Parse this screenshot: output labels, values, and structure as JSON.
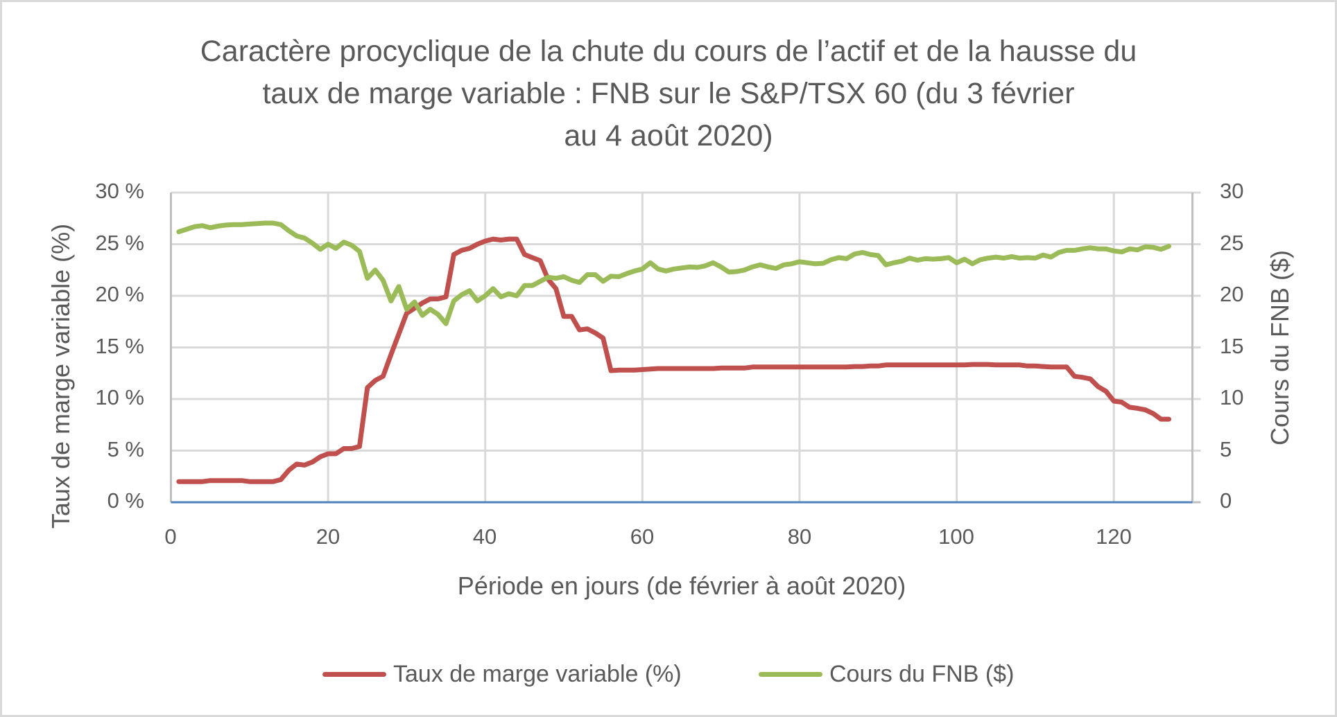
{
  "chart_data": {
    "type": "line",
    "title": "Caractère procyclique de la chute du cours de l’actif et de la hausse du taux de marge variable : FNB sur le S&P/TSX 60 (du 3 février au 4 août 2020)",
    "title_lines": [
      "Caractère procyclique de la chute du cours de l’actif et de la hausse du",
      "taux de marge variable : FNB sur le S&P/TSX 60 (du 3 février",
      "au 4 août 2020)"
    ],
    "xlabel": "Période en jours (de février à août 2020)",
    "ylabel": "Taux de marge variable (%)",
    "y2label": "Cours du FNB ($)",
    "xlim": [
      0,
      130
    ],
    "ylim": [
      0,
      30
    ],
    "y2lim": [
      0,
      30
    ],
    "x_ticks": [
      "0",
      "20",
      "40",
      "60",
      "80",
      "100",
      "120"
    ],
    "y_ticks": [
      "0 %",
      "5 %",
      "10 %",
      "15 %",
      "20 %",
      "25 %",
      "30 %"
    ],
    "y2_ticks": [
      "0",
      "5",
      "10",
      "15",
      "20",
      "25",
      "30"
    ],
    "grid": true,
    "legend_position": "bottom",
    "x": [
      1,
      2,
      3,
      4,
      5,
      6,
      7,
      8,
      9,
      10,
      11,
      12,
      13,
      14,
      15,
      16,
      17,
      18,
      19,
      20,
      21,
      22,
      23,
      24,
      25,
      26,
      27,
      28,
      29,
      30,
      31,
      32,
      33,
      34,
      35,
      36,
      37,
      38,
      39,
      40,
      41,
      42,
      43,
      44,
      45,
      46,
      47,
      48,
      49,
      50,
      51,
      52,
      53,
      54,
      55,
      56,
      57,
      58,
      59,
      60,
      61,
      62,
      63,
      64,
      65,
      66,
      67,
      68,
      69,
      70,
      71,
      72,
      73,
      74,
      75,
      76,
      77,
      78,
      79,
      80,
      81,
      82,
      83,
      84,
      85,
      86,
      87,
      88,
      89,
      90,
      91,
      92,
      93,
      94,
      95,
      96,
      97,
      98,
      99,
      100,
      101,
      102,
      103,
      104,
      105,
      106,
      107,
      108,
      109,
      110,
      111,
      112,
      113,
      114,
      115,
      116,
      117,
      118,
      119,
      120,
      121,
      122,
      123,
      124,
      125,
      126,
      127
    ],
    "series": [
      {
        "name": "Taux de marge variable (%)",
        "axis": "left",
        "color": "#c0504d",
        "values": [
          2.0,
          2.0,
          2.0,
          2.0,
          2.1,
          2.1,
          2.1,
          2.1,
          2.1,
          2.0,
          2.0,
          2.0,
          2.0,
          2.2,
          3.1,
          3.7,
          3.6,
          3.9,
          4.4,
          4.7,
          4.7,
          5.2,
          5.2,
          5.4,
          11.1,
          11.8,
          12.2,
          14.3,
          16.3,
          18.3,
          18.8,
          19.3,
          19.7,
          19.7,
          19.9,
          24.0,
          24.4,
          24.6,
          25.0,
          25.3,
          25.5,
          25.4,
          25.5,
          25.5,
          24.0,
          23.7,
          23.4,
          21.6,
          20.7,
          18.0,
          18.0,
          16.7,
          16.8,
          16.4,
          15.9,
          12.75,
          12.8,
          12.8,
          12.8,
          12.85,
          12.9,
          12.95,
          12.95,
          12.95,
          12.95,
          12.95,
          12.95,
          12.95,
          12.95,
          13.0,
          13.0,
          13.0,
          13.0,
          13.1,
          13.1,
          13.1,
          13.1,
          13.1,
          13.1,
          13.1,
          13.1,
          13.1,
          13.1,
          13.1,
          13.1,
          13.1,
          13.15,
          13.15,
          13.2,
          13.2,
          13.3,
          13.3,
          13.3,
          13.3,
          13.3,
          13.3,
          13.3,
          13.3,
          13.3,
          13.3,
          13.3,
          13.35,
          13.35,
          13.35,
          13.3,
          13.3,
          13.3,
          13.3,
          13.2,
          13.2,
          13.15,
          13.1,
          13.1,
          13.1,
          12.2,
          12.1,
          11.95,
          11.2,
          10.75,
          9.8,
          9.7,
          9.2,
          9.1,
          8.95,
          8.6,
          8.05,
          8.05
        ]
      },
      {
        "name": "Cours du FNB ($)",
        "axis": "right",
        "color": "#9bbb59",
        "values": [
          26.2,
          26.45,
          26.7,
          26.8,
          26.6,
          26.75,
          26.85,
          26.9,
          26.9,
          26.95,
          27.0,
          27.05,
          27.05,
          26.9,
          26.3,
          25.8,
          25.6,
          25.1,
          24.5,
          25.0,
          24.6,
          25.2,
          24.9,
          24.3,
          21.7,
          22.5,
          21.5,
          19.5,
          20.9,
          18.7,
          19.4,
          18.1,
          18.7,
          18.2,
          17.3,
          19.5,
          20.1,
          20.5,
          19.5,
          20.0,
          20.7,
          19.9,
          20.2,
          20.0,
          21.0,
          21.0,
          21.4,
          21.8,
          21.7,
          21.85,
          21.5,
          21.3,
          22.05,
          22.05,
          21.4,
          21.9,
          21.85,
          22.15,
          22.4,
          22.6,
          23.2,
          22.6,
          22.4,
          22.6,
          22.7,
          22.8,
          22.75,
          22.9,
          23.2,
          22.8,
          22.3,
          22.35,
          22.5,
          22.8,
          23.0,
          22.8,
          22.65,
          23.0,
          23.1,
          23.3,
          23.2,
          23.1,
          23.15,
          23.5,
          23.7,
          23.6,
          24.05,
          24.2,
          24.0,
          23.9,
          23.0,
          23.2,
          23.35,
          23.65,
          23.45,
          23.6,
          23.55,
          23.6,
          23.7,
          23.2,
          23.55,
          23.1,
          23.5,
          23.65,
          23.75,
          23.65,
          23.8,
          23.65,
          23.7,
          23.65,
          23.95,
          23.75,
          24.2,
          24.4,
          24.4,
          24.55,
          24.65,
          24.55,
          24.55,
          24.35,
          24.25,
          24.55,
          24.45,
          24.75,
          24.7,
          24.5,
          24.8
        ]
      }
    ]
  },
  "colors": {
    "text": "#595959",
    "grid": "#d9d9d9",
    "x_axis_line": "#4f81bd",
    "border": "#d9d9d9"
  }
}
